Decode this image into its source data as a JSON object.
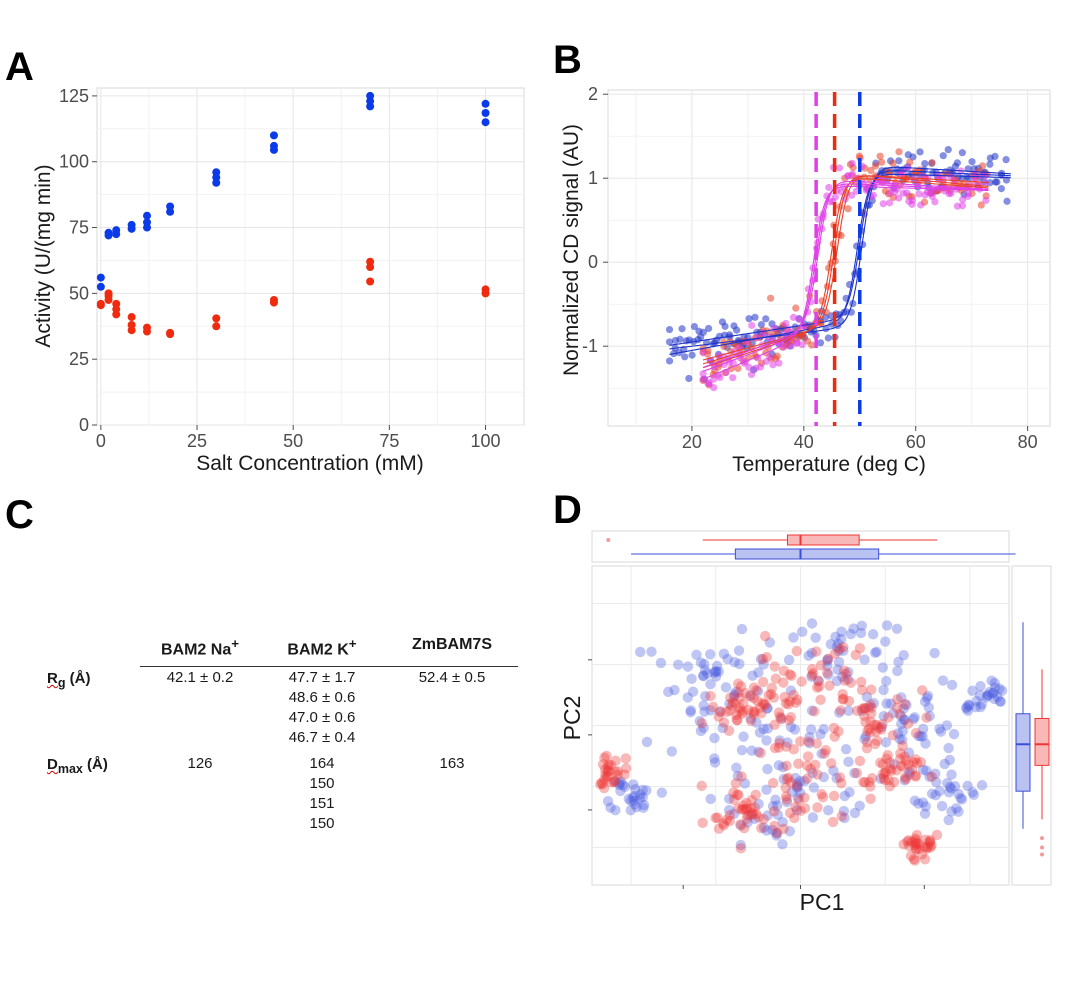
{
  "panels": {
    "A": {
      "letter": "A",
      "chart_data": {
        "type": "scatter",
        "xlabel": "Salt Concentration (mM)",
        "ylabel": "Activity (U/(mg min)",
        "xlim": [
          -1,
          110
        ],
        "ylim": [
          0,
          128
        ],
        "xticks": [
          0,
          25,
          50,
          75,
          100
        ],
        "yticks": [
          0,
          25,
          50,
          75,
          100,
          125
        ],
        "grid": true,
        "series": [
          {
            "color": "#0b3be8",
            "points": [
              [
                0,
                56
              ],
              [
                0,
                52.5
              ],
              [
                2,
                72
              ],
              [
                2,
                73
              ],
              [
                4,
                72.5
              ],
              [
                4,
                74
              ],
              [
                8,
                74.5
              ],
              [
                8,
                76
              ],
              [
                12,
                75
              ],
              [
                12,
                77
              ],
              [
                12,
                79.5
              ],
              [
                18,
                81
              ],
              [
                18,
                83
              ],
              [
                30,
                92
              ],
              [
                30,
                94
              ],
              [
                30,
                96
              ],
              [
                45,
                104.5
              ],
              [
                45,
                106
              ],
              [
                45,
                110
              ],
              [
                70,
                121
              ],
              [
                70,
                123
              ],
              [
                70,
                125
              ],
              [
                100,
                115
              ],
              [
                100,
                118.5
              ],
              [
                100,
                122
              ]
            ]
          },
          {
            "color": "#ef2a0e",
            "points": [
              [
                0,
                46
              ],
              [
                0,
                45.5
              ],
              [
                2,
                47.5
              ],
              [
                2,
                49
              ],
              [
                2,
                50
              ],
              [
                4,
                42
              ],
              [
                4,
                44
              ],
              [
                4,
                46
              ],
              [
                8,
                36
              ],
              [
                8,
                38
              ],
              [
                8,
                41
              ],
              [
                12,
                35.5
              ],
              [
                12,
                37
              ],
              [
                18,
                34.5
              ],
              [
                18,
                35
              ],
              [
                30,
                37.5
              ],
              [
                30,
                40.5
              ],
              [
                45,
                46.5
              ],
              [
                45,
                47.5
              ],
              [
                70,
                54.5
              ],
              [
                70,
                60
              ],
              [
                70,
                62
              ],
              [
                100,
                50
              ],
              [
                100,
                51.5
              ]
            ]
          }
        ]
      }
    },
    "B": {
      "letter": "B",
      "chart_data": {
        "type": "scatter",
        "xlabel": "Temperature (deg C)",
        "ylabel": "Normalized CD signal (AU)",
        "xlim": [
          5,
          84
        ],
        "ylim": [
          -1.95,
          2.05
        ],
        "xticks": [
          20,
          40,
          60,
          80
        ],
        "yticks": [
          -1,
          0,
          1,
          2
        ],
        "grid": true,
        "melting_lines": [
          {
            "x": 42.2,
            "color": "#e040e8"
          },
          {
            "x": 45.5,
            "color": "#ef2a0e"
          },
          {
            "x": 50.0,
            "color": "#0b3be8"
          }
        ],
        "fits": [
          {
            "color": "#1f33c9",
            "tm": 50.0,
            "low": -0.95,
            "low_slope": 0.01,
            "high": 1.08,
            "high_slope": -0.003
          },
          {
            "color": "#1f33c9",
            "tm": 49.6,
            "low": -1.05,
            "low_slope": 0.012,
            "high": 1.04,
            "high_slope": -0.002
          },
          {
            "color": "#1f33c9",
            "tm": 50.4,
            "low": -1.0,
            "low_slope": 0.008,
            "high": 1.12,
            "high_slope": -0.004
          },
          {
            "color": "#e8412a",
            "tm": 45.5,
            "low": -1.25,
            "low_slope": 0.02,
            "high": 0.98,
            "high_slope": -0.006
          },
          {
            "color": "#e8412a",
            "tm": 45.0,
            "low": -1.3,
            "low_slope": 0.022,
            "high": 0.95,
            "high_slope": -0.005
          },
          {
            "color": "#e8412a",
            "tm": 46.0,
            "low": -1.2,
            "low_slope": 0.018,
            "high": 1.0,
            "high_slope": -0.004
          },
          {
            "color": "#e040e8",
            "tm": 42.2,
            "low": -1.35,
            "low_slope": 0.025,
            "high": 0.9,
            "high_slope": -0.003
          },
          {
            "color": "#e040e8",
            "tm": 41.8,
            "low": -1.45,
            "low_slope": 0.028,
            "high": 0.88,
            "high_slope": -0.002
          },
          {
            "color": "#e040e8",
            "tm": 42.6,
            "low": -1.3,
            "low_slope": 0.024,
            "high": 0.92,
            "high_slope": -0.004
          }
        ],
        "scatter_noise": 0.13
      }
    },
    "C": {
      "letter": "C",
      "table": {
        "headers": [
          "BAM2 Na",
          "BAM2 K",
          "ZmBAM7S"
        ],
        "header_superscripts": [
          "+",
          "+",
          ""
        ],
        "rows": [
          {
            "label_main": "R",
            "label_sub": "g",
            "label_tail": " (Å)",
            "cells": [
              [
                "42.1 ± 0.2"
              ],
              [
                "47.7 ± 1.7",
                "48.6 ± 0.6",
                "47.0 ± 0.6",
                "46.7 ± 0.4"
              ],
              [
                "52.4 ± 0.5"
              ]
            ]
          },
          {
            "label_main": "D",
            "label_sub": "max",
            "label_tail": " (Å)",
            "cells": [
              [
                "126"
              ],
              [
                "164",
                "150",
                "151",
                "150"
              ],
              [
                "163"
              ]
            ]
          }
        ]
      }
    },
    "D": {
      "letter": "D",
      "chart_data": {
        "type": "scatter",
        "xlabel": "PC1",
        "ylabel": "PC2",
        "xlim": [
          -3.2,
          3.2
        ],
        "ylim": [
          -3.0,
          3.8
        ],
        "grid": true,
        "series": [
          {
            "color": "#4a5ce0",
            "alpha": 0.35
          },
          {
            "color": "#ef3434",
            "alpha": 0.35
          }
        ],
        "boxplot_top": [
          {
            "color": "#ef3434",
            "min": -1.5,
            "q1": -0.2,
            "median": 0.0,
            "q3": 0.9,
            "max": 2.1,
            "outliers": [
              -2.95
            ]
          },
          {
            "color": "#3a4fd8",
            "min": -2.6,
            "q1": -1.0,
            "median": 0.0,
            "q3": 1.2,
            "max": 3.3
          }
        ],
        "boxplot_right": [
          {
            "color": "#3a4fd8",
            "min": -1.8,
            "q1": -1.0,
            "median": 0.0,
            "q3": 0.65,
            "max": 2.6
          },
          {
            "color": "#ef3434",
            "min": -1.6,
            "q1": -0.45,
            "median": 0.0,
            "q3": 0.55,
            "max": 1.6,
            "outliers": [
              -2.0,
              -2.2,
              -2.35
            ]
          }
        ]
      }
    }
  }
}
